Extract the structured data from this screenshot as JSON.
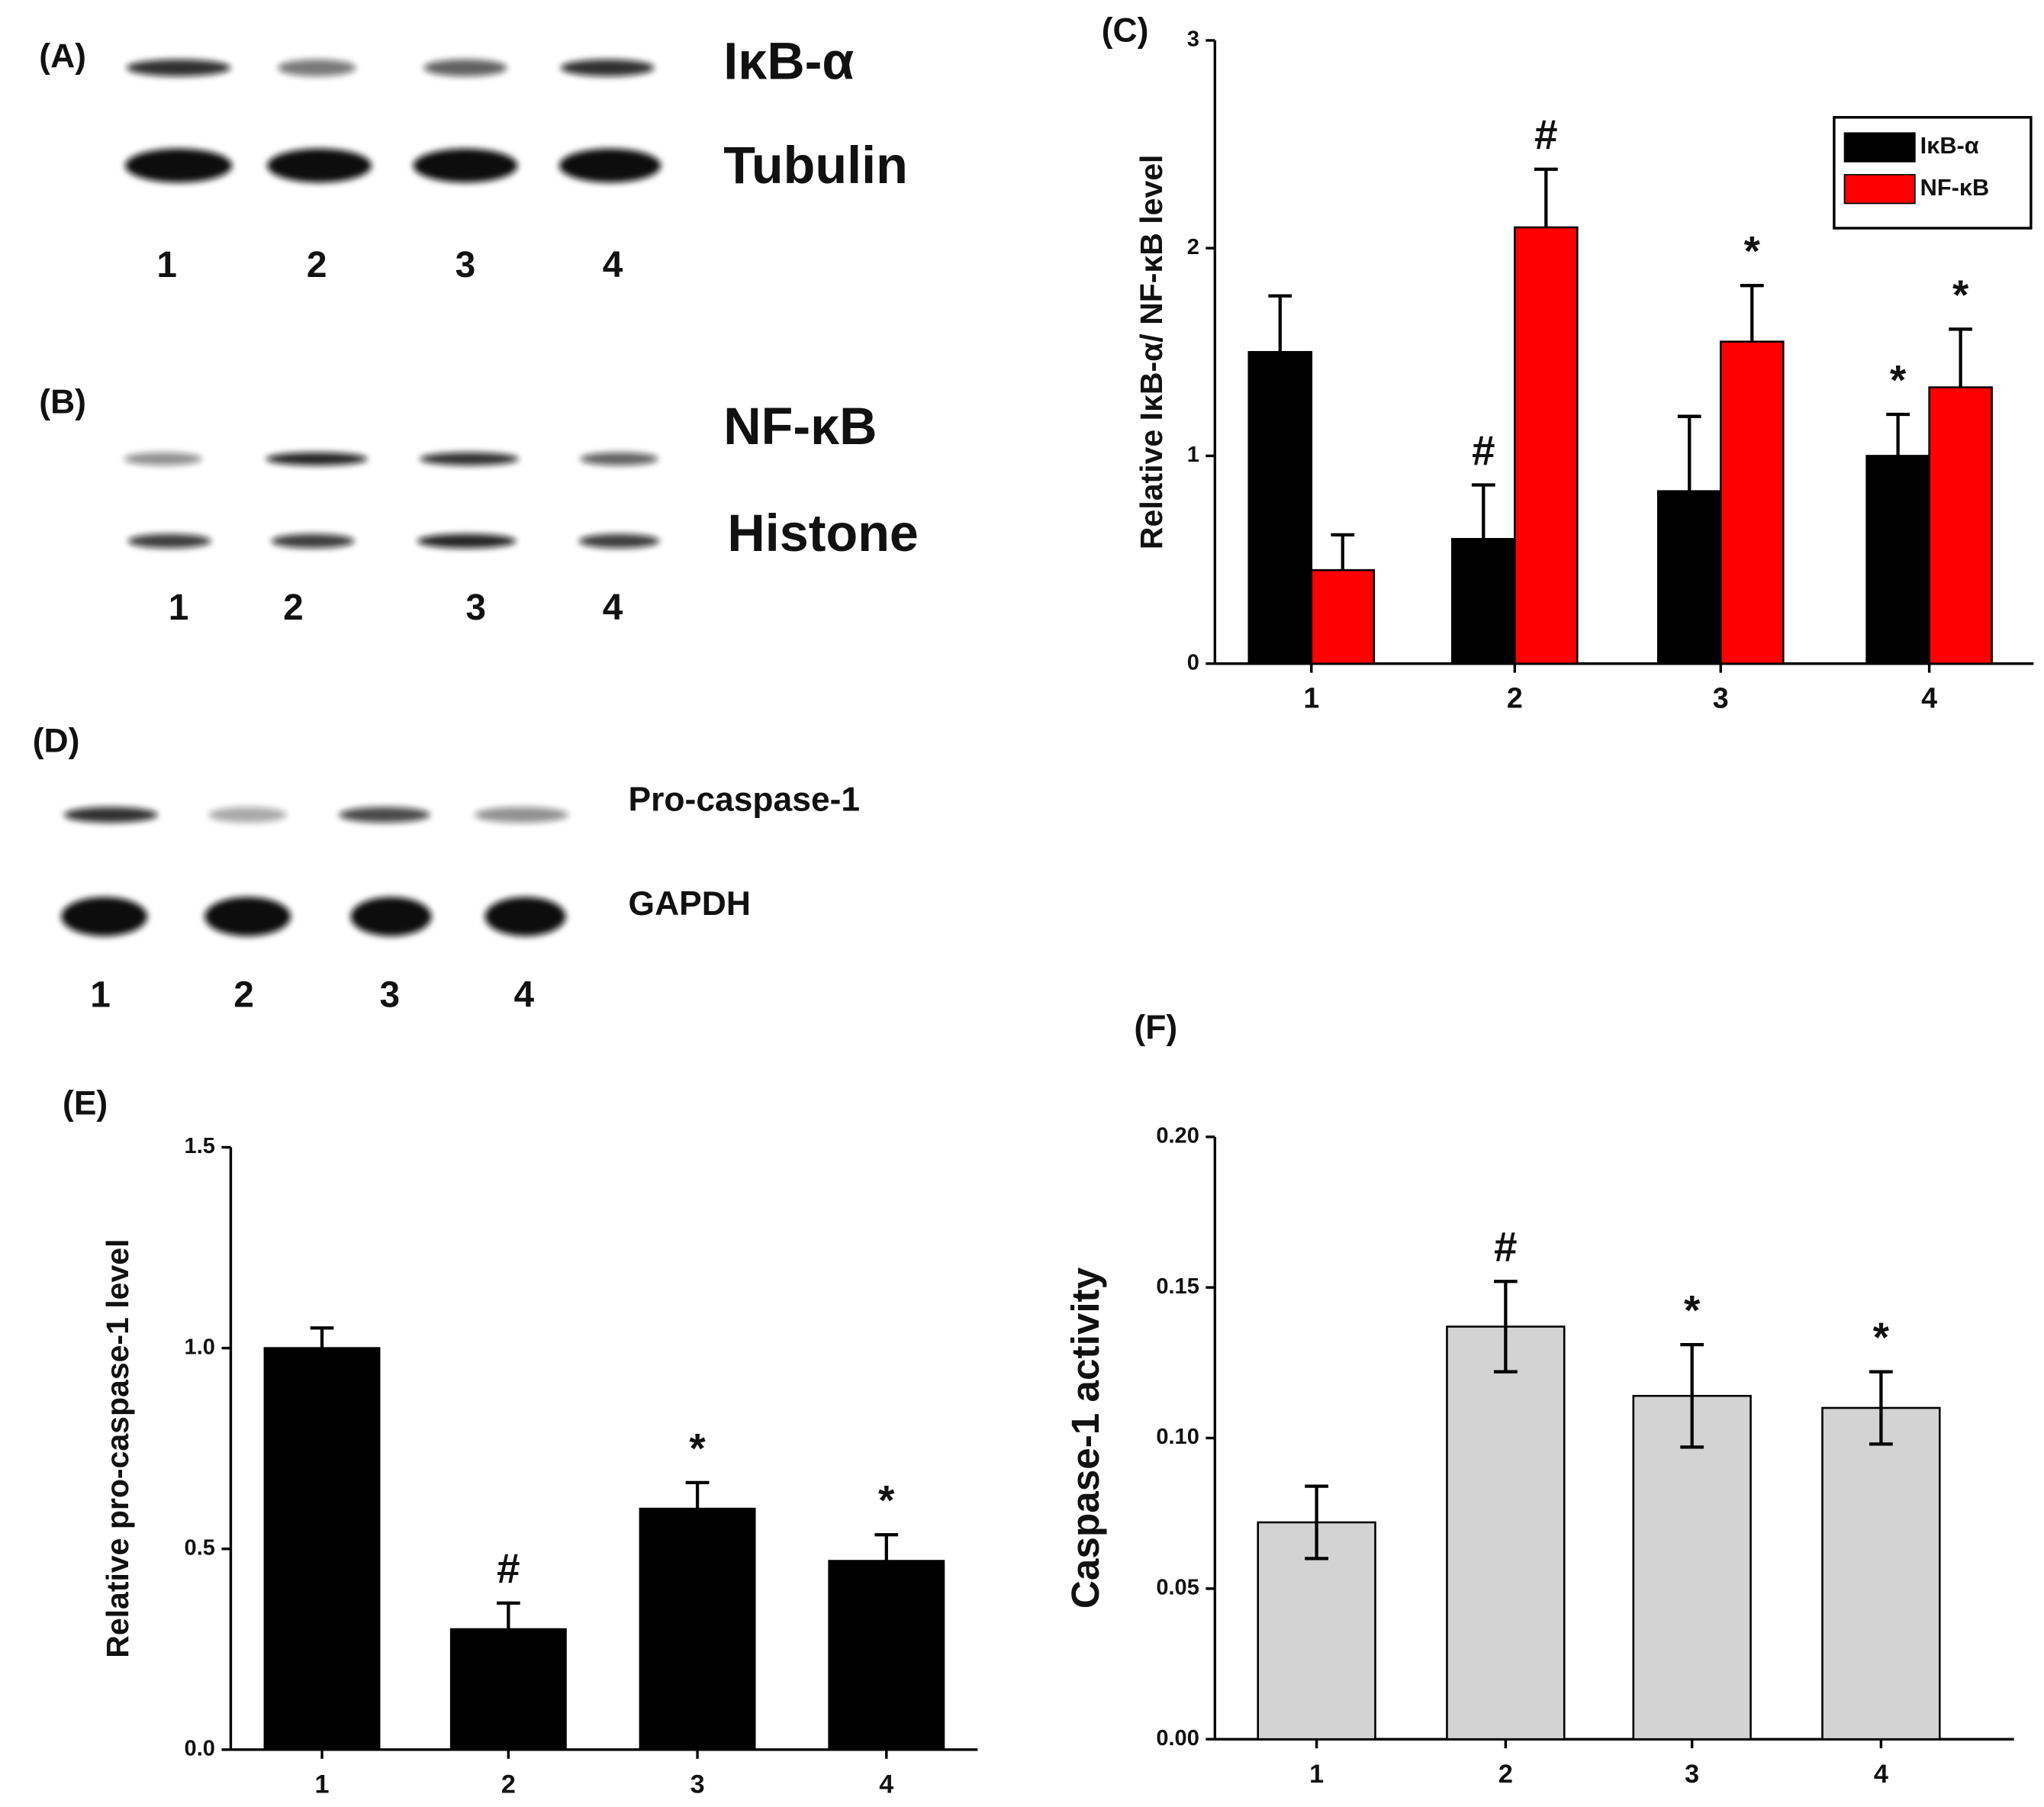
{
  "blots": [
    {
      "label": "(A)",
      "proteins": [
        "IκB-α",
        "Tubulin"
      ],
      "lanes": [
        "1",
        "2",
        "3",
        "4"
      ]
    },
    {
      "label": "(B)",
      "proteins": [
        "NF-κB",
        "Histone"
      ],
      "lanes": [
        "1",
        "2",
        "3",
        "4"
      ]
    },
    {
      "label": "(D)",
      "proteins": [
        "Pro-caspase-1",
        "GAPDH"
      ],
      "lanes": [
        "1",
        "2",
        "3",
        "4"
      ]
    }
  ],
  "chart_data": [
    {
      "type": "bar",
      "panel_label": "(C)",
      "ylabel": "Relative IκB-α/ NF-κB level",
      "categories": [
        "1",
        "2",
        "3",
        "4"
      ],
      "ylim": [
        0,
        3
      ],
      "yticks": [
        0,
        1,
        2,
        3
      ],
      "legend": "upper right",
      "series": [
        {
          "name": "IκB-α",
          "color": "#000000",
          "values": [
            1.5,
            0.6,
            0.83,
            1.0
          ],
          "errors": [
            0.27,
            0.26,
            0.36,
            0.2
          ],
          "annotations": [
            null,
            "#",
            null,
            "*"
          ]
        },
        {
          "name": "NF-κB",
          "color": "#ff0000",
          "values": [
            0.45,
            2.1,
            1.55,
            1.33
          ],
          "errors": [
            0.17,
            0.28,
            0.27,
            0.28
          ],
          "annotations": [
            null,
            "#",
            "*",
            "*"
          ]
        }
      ]
    },
    {
      "type": "bar",
      "panel_label": "(E)",
      "ylabel": "Relative pro-caspase-1 level",
      "categories": [
        "1",
        "2",
        "3",
        "4"
      ],
      "ylim": [
        0,
        1.5
      ],
      "yticks": [
        {
          "value": 0,
          "label": "0.0"
        },
        0.5,
        {
          "value": 1,
          "label": "1.0"
        },
        1.5
      ],
      "series": [
        {
          "color": "#000000",
          "values": [
            1.0,
            0.3,
            0.6,
            0.47
          ],
          "errors": [
            0.05,
            0.065,
            0.065,
            0.065
          ],
          "annotations": [
            null,
            "#",
            "*",
            "*"
          ]
        }
      ]
    },
    {
      "type": "bar",
      "panel_label": "(F)",
      "ylabel": "Caspase-1 activity",
      "categories": [
        "1",
        "2",
        "3",
        "4"
      ],
      "ylim": [
        0,
        0.2
      ],
      "yticks": [
        {
          "value": 0,
          "label": "0.00"
        },
        {
          "value": 0.05,
          "label": "0.05"
        },
        {
          "value": 0.1,
          "label": "0.10"
        },
        {
          "value": 0.15,
          "label": "0.15"
        },
        {
          "value": 0.2,
          "label": "0.20"
        }
      ],
      "series": [
        {
          "color": "#d3d3d3",
          "values": [
            0.072,
            0.137,
            0.114,
            0.11
          ],
          "errors": [
            0.012,
            0.015,
            0.017,
            0.012
          ],
          "annotations": [
            null,
            "#",
            "*",
            "*"
          ]
        }
      ]
    }
  ]
}
